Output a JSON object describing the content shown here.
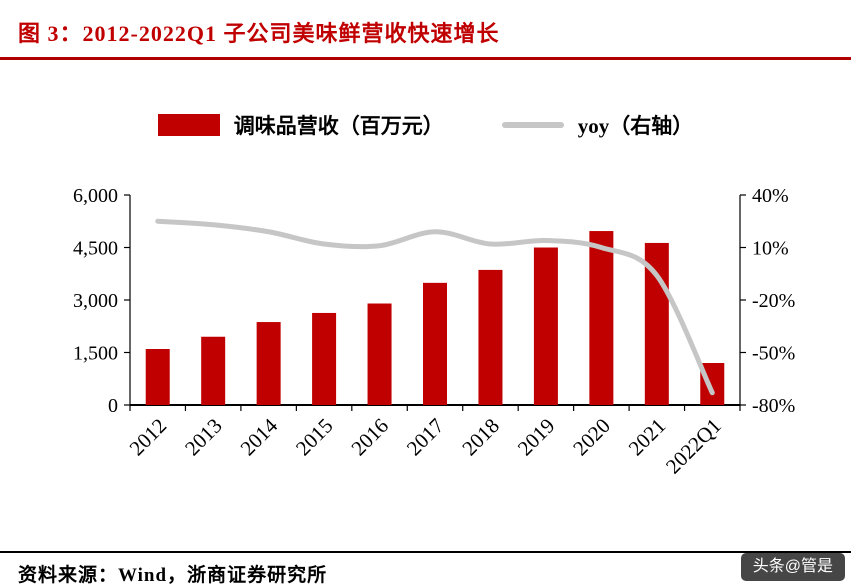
{
  "header": {
    "title": "图 3：2012-2022Q1 子公司美味鲜营收快速增长"
  },
  "legend": {
    "bar_label": "调味品营收（百万元）",
    "line_label": "yoy（右轴）"
  },
  "chart_data": {
    "type": "bar",
    "title": "2012-2022Q1 子公司美味鲜营收快速增长",
    "categories": [
      "2012",
      "2013",
      "2014",
      "2015",
      "2016",
      "2017",
      "2018",
      "2019",
      "2020",
      "2021",
      "2022Q1"
    ],
    "series": [
      {
        "name": "调味品营收（百万元）",
        "type": "bar",
        "axis": "left",
        "color": "#c00000",
        "values": [
          1600,
          1950,
          2370,
          2630,
          2900,
          3490,
          3860,
          4500,
          4970,
          4630,
          1200
        ]
      },
      {
        "name": "yoy（右轴）",
        "type": "line",
        "axis": "right",
        "color": "#c6c6c6",
        "values": [
          25,
          23,
          19,
          12,
          11,
          19,
          12,
          14,
          10,
          -6,
          -73
        ]
      }
    ],
    "left_axis": {
      "min": 0,
      "max": 6000,
      "ticks": [
        "0",
        "1,500",
        "3,000",
        "4,500",
        "6,000"
      ]
    },
    "right_axis": {
      "min": -80,
      "max": 40,
      "ticks": [
        "-80%",
        "-50%",
        "-20%",
        "10%",
        "40%"
      ]
    },
    "legend_position": "top",
    "grid": false
  },
  "footer": {
    "source": "资料来源：Wind，浙商证券研究所"
  },
  "watermark": "头条@管是"
}
